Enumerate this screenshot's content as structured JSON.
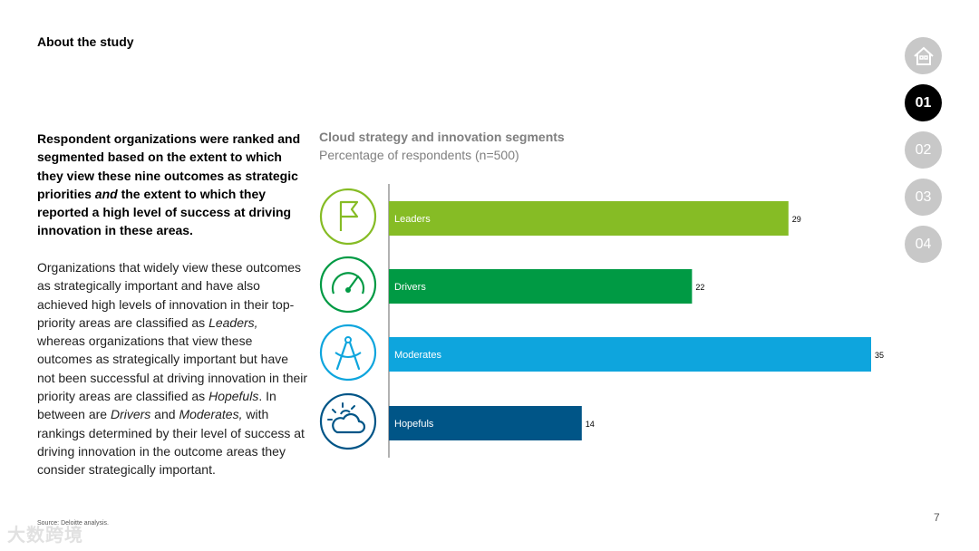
{
  "header": {
    "title": "About the study"
  },
  "intro": {
    "bold_part1": "Respondent organizations were ranked and segmented based on the extent to which they view these nine outcomes as strategic priorities ",
    "bold_italic": "and",
    "bold_part2": " the extent to which they reported a high level of success at driving innovation in these areas.",
    "body_1": "Organizations that widely view these outcomes as strategically important and have also achieved high levels of innovation in their top-priority areas are classified as ",
    "body_leaders": "Leaders,",
    "body_2": " whereas organizations that view these outcomes as strategically important but have not been successful at driving innovation in their priority areas are classified as ",
    "body_hopefuls": "Hopefuls",
    "body_3": ". In between are ",
    "body_drivers": "Drivers",
    "body_4": " and ",
    "body_moderates": "Moderates,",
    "body_5": " with rankings determined by their level of success at driving innovation in the outcome areas they consider strategically important."
  },
  "chart_data": {
    "type": "bar",
    "orientation": "horizontal",
    "title": "Cloud strategy and innovation segments",
    "subtitle": "Percentage of respondents (n=500)",
    "categories": [
      "Leaders",
      "Drivers",
      "Moderates",
      "Hopefuls"
    ],
    "values": [
      29,
      22,
      35,
      14
    ],
    "colors": [
      "#86bc25",
      "#009a44",
      "#0ea5dd",
      "#005587"
    ],
    "icons": [
      "flag-icon",
      "gauge-icon",
      "compass-icon",
      "weather-icon"
    ],
    "xlim": [
      0,
      35
    ]
  },
  "nav": {
    "home_icon": "home-icon",
    "items": [
      "01",
      "02",
      "03",
      "04"
    ],
    "active": "01"
  },
  "footer": {
    "source": "Source: Deloitte analysis.",
    "page": "7",
    "watermark": "大数跨境"
  }
}
